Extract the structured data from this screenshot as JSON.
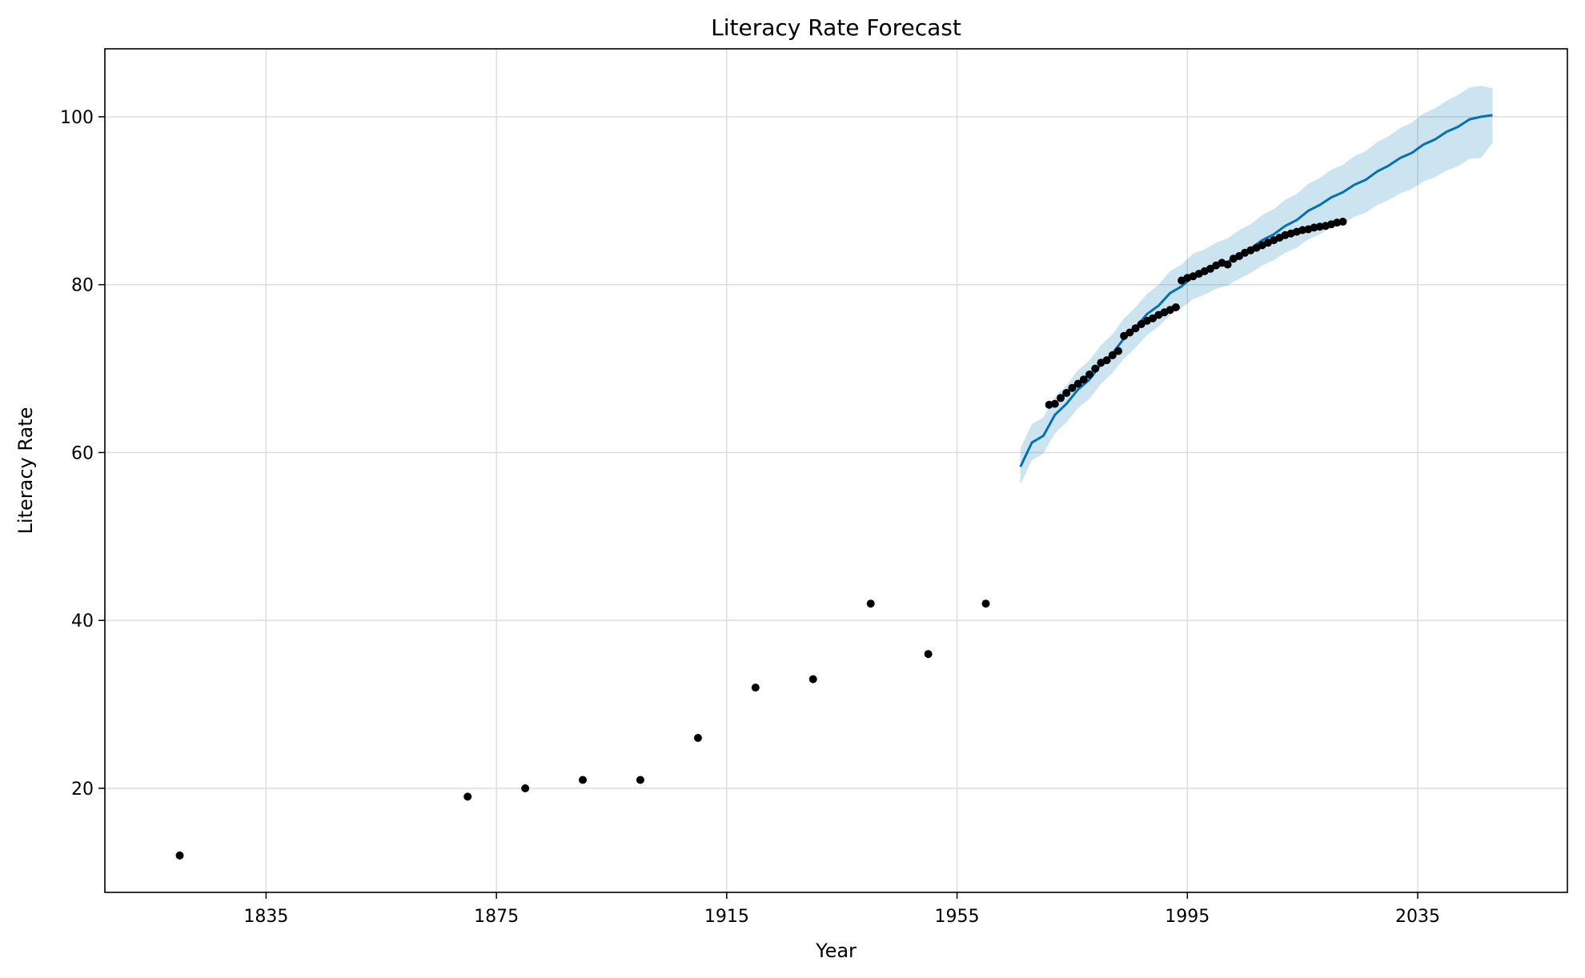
{
  "chart_data": {
    "type": "line",
    "title": "Literacy Rate Forecast",
    "xlabel": "Year",
    "ylabel": "Literacy Rate",
    "xlim": [
      1807,
      2061
    ],
    "ylim": [
      7.6,
      108.1
    ],
    "grid": true,
    "x_ticks": [
      1835,
      1875,
      1915,
      1955,
      1995,
      2035
    ],
    "y_ticks": [
      20,
      40,
      60,
      80,
      100
    ],
    "colors": {
      "forecast_line": "#0072B2",
      "forecast_band": "#0072B2",
      "observed_points": "#000000",
      "grid": "#dddddd"
    },
    "series": [
      {
        "kind": "observed",
        "x": [
          1820,
          1870,
          1880,
          1890,
          1900,
          1910,
          1920,
          1930,
          1940,
          1950,
          1960,
          1971,
          1972,
          1973,
          1974,
          1975,
          1976,
          1977,
          1978,
          1979,
          1980,
          1981,
          1982,
          1983,
          1984,
          1985,
          1986,
          1987,
          1988,
          1989,
          1990,
          1991,
          1992,
          1993,
          1994,
          1995,
          1996,
          1997,
          1998,
          1999,
          2000,
          2001,
          2002,
          2003,
          2004,
          2005,
          2006,
          2007,
          2008,
          2009,
          2010,
          2011,
          2012,
          2013,
          2014,
          2015,
          2016,
          2017,
          2018,
          2019,
          2020,
          2021,
          2022
        ],
        "y": [
          12,
          19,
          20,
          21,
          21,
          26,
          32,
          33,
          42,
          36,
          42,
          65.7,
          65.8,
          66.5,
          67.1,
          67.7,
          68.2,
          68.7,
          69.3,
          70.0,
          70.7,
          71.0,
          71.6,
          72.1,
          73.9,
          74.3,
          74.8,
          75.3,
          75.7,
          76.0,
          76.4,
          76.7,
          77.0,
          77.3,
          80.5,
          80.8,
          81.0,
          81.3,
          81.6,
          81.9,
          82.3,
          82.6,
          82.4,
          83.1,
          83.4,
          83.8,
          84.1,
          84.4,
          84.7,
          85.0,
          85.3,
          85.6,
          85.9,
          86.1,
          86.3,
          86.5,
          86.6,
          86.8,
          86.9,
          87.0,
          87.2,
          87.4,
          87.5
        ]
      },
      {
        "kind": "forecast",
        "x": [
          1966,
          1968,
          1970,
          1972,
          1974,
          1976,
          1978,
          1980,
          1982,
          1984,
          1986,
          1988,
          1990,
          1992,
          1994,
          1996,
          1998,
          2000,
          2002,
          2004,
          2006,
          2008,
          2010,
          2012,
          2014,
          2016,
          2018,
          2020,
          2022,
          2024,
          2026,
          2028,
          2030,
          2032,
          2034,
          2036,
          2038,
          2040,
          2042,
          2044,
          2046,
          2048
        ],
        "y": [
          58.3,
          61.2,
          62.0,
          64.5,
          65.8,
          67.5,
          68.7,
          70.5,
          71.8,
          73.6,
          74.9,
          76.5,
          77.5,
          79.0,
          79.8,
          81.0,
          81.5,
          82.3,
          82.7,
          83.6,
          84.3,
          85.3,
          86.0,
          87.0,
          87.7,
          88.8,
          89.5,
          90.4,
          91.0,
          91.9,
          92.5,
          93.5,
          94.2,
          95.1,
          95.7,
          96.7,
          97.3,
          98.2,
          98.8,
          99.7,
          100.0,
          100.2
        ],
        "lower": [
          56.2,
          59.1,
          59.9,
          62.3,
          63.6,
          65.3,
          66.4,
          68.2,
          69.5,
          71.2,
          72.5,
          74.0,
          75.0,
          76.4,
          77.2,
          78.3,
          78.8,
          79.5,
          79.9,
          80.7,
          81.4,
          82.3,
          82.9,
          83.8,
          84.4,
          85.4,
          86.0,
          86.8,
          87.3,
          88.1,
          88.6,
          89.5,
          90.1,
          90.9,
          91.4,
          92.3,
          92.8,
          93.6,
          94.1,
          95.0,
          95.1,
          96.9
        ],
        "upper": [
          60.5,
          63.4,
          64.2,
          66.7,
          68.0,
          69.8,
          71.0,
          72.8,
          74.1,
          76.0,
          77.3,
          78.9,
          80.0,
          81.6,
          82.4,
          83.7,
          84.2,
          85.0,
          85.5,
          86.5,
          87.2,
          88.3,
          89.0,
          90.1,
          90.8,
          92.0,
          92.7,
          93.7,
          94.3,
          95.3,
          95.9,
          97.0,
          97.7,
          98.7,
          99.3,
          100.4,
          101.0,
          101.9,
          102.6,
          103.5,
          103.7,
          103.4
        ]
      }
    ]
  }
}
